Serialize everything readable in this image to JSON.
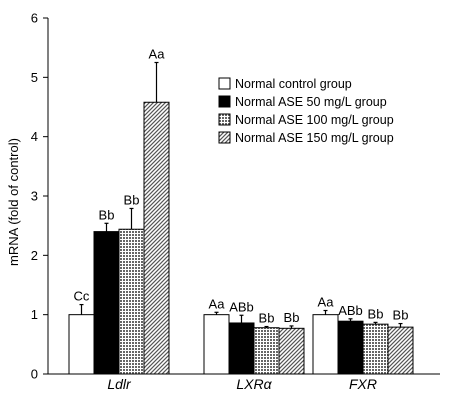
{
  "chart_data": {
    "type": "bar",
    "ylabel": "mRNA (fold of control)",
    "xlabel": "",
    "ylim": [
      0,
      6
    ],
    "yticks": [
      0,
      1,
      2,
      3,
      4,
      5,
      6
    ],
    "categories": [
      "Ldlr",
      "LXRα",
      "FXR"
    ],
    "category_style": "italic",
    "series": [
      {
        "name": "Normal control group",
        "pattern": "white",
        "values": [
          1.0,
          1.0,
          1.0
        ],
        "errors": [
          0.17,
          0.04,
          0.07
        ],
        "labels": [
          "Cc",
          "Aa",
          "Aa"
        ]
      },
      {
        "name": "Normal ASE 50 mg/L group",
        "pattern": "black",
        "values": [
          2.4,
          0.86,
          0.89
        ],
        "errors": [
          0.14,
          0.13,
          0.04
        ],
        "labels": [
          "Bb",
          "ABb",
          "ABb"
        ]
      },
      {
        "name": "Normal ASE 100 mg/L group",
        "pattern": "grid",
        "values": [
          2.44,
          0.78,
          0.84
        ],
        "errors": [
          0.35,
          0.02,
          0.03
        ],
        "labels": [
          "Bb",
          "Bb",
          "Bb"
        ]
      },
      {
        "name": "Normal ASE 150 mg/L group",
        "pattern": "diagonal",
        "values": [
          4.58,
          0.77,
          0.79
        ],
        "errors": [
          0.67,
          0.04,
          0.06
        ],
        "labels": [
          "Aa",
          "Bb",
          "Bb"
        ]
      }
    ],
    "legend_position": "top-right",
    "grid": false
  }
}
